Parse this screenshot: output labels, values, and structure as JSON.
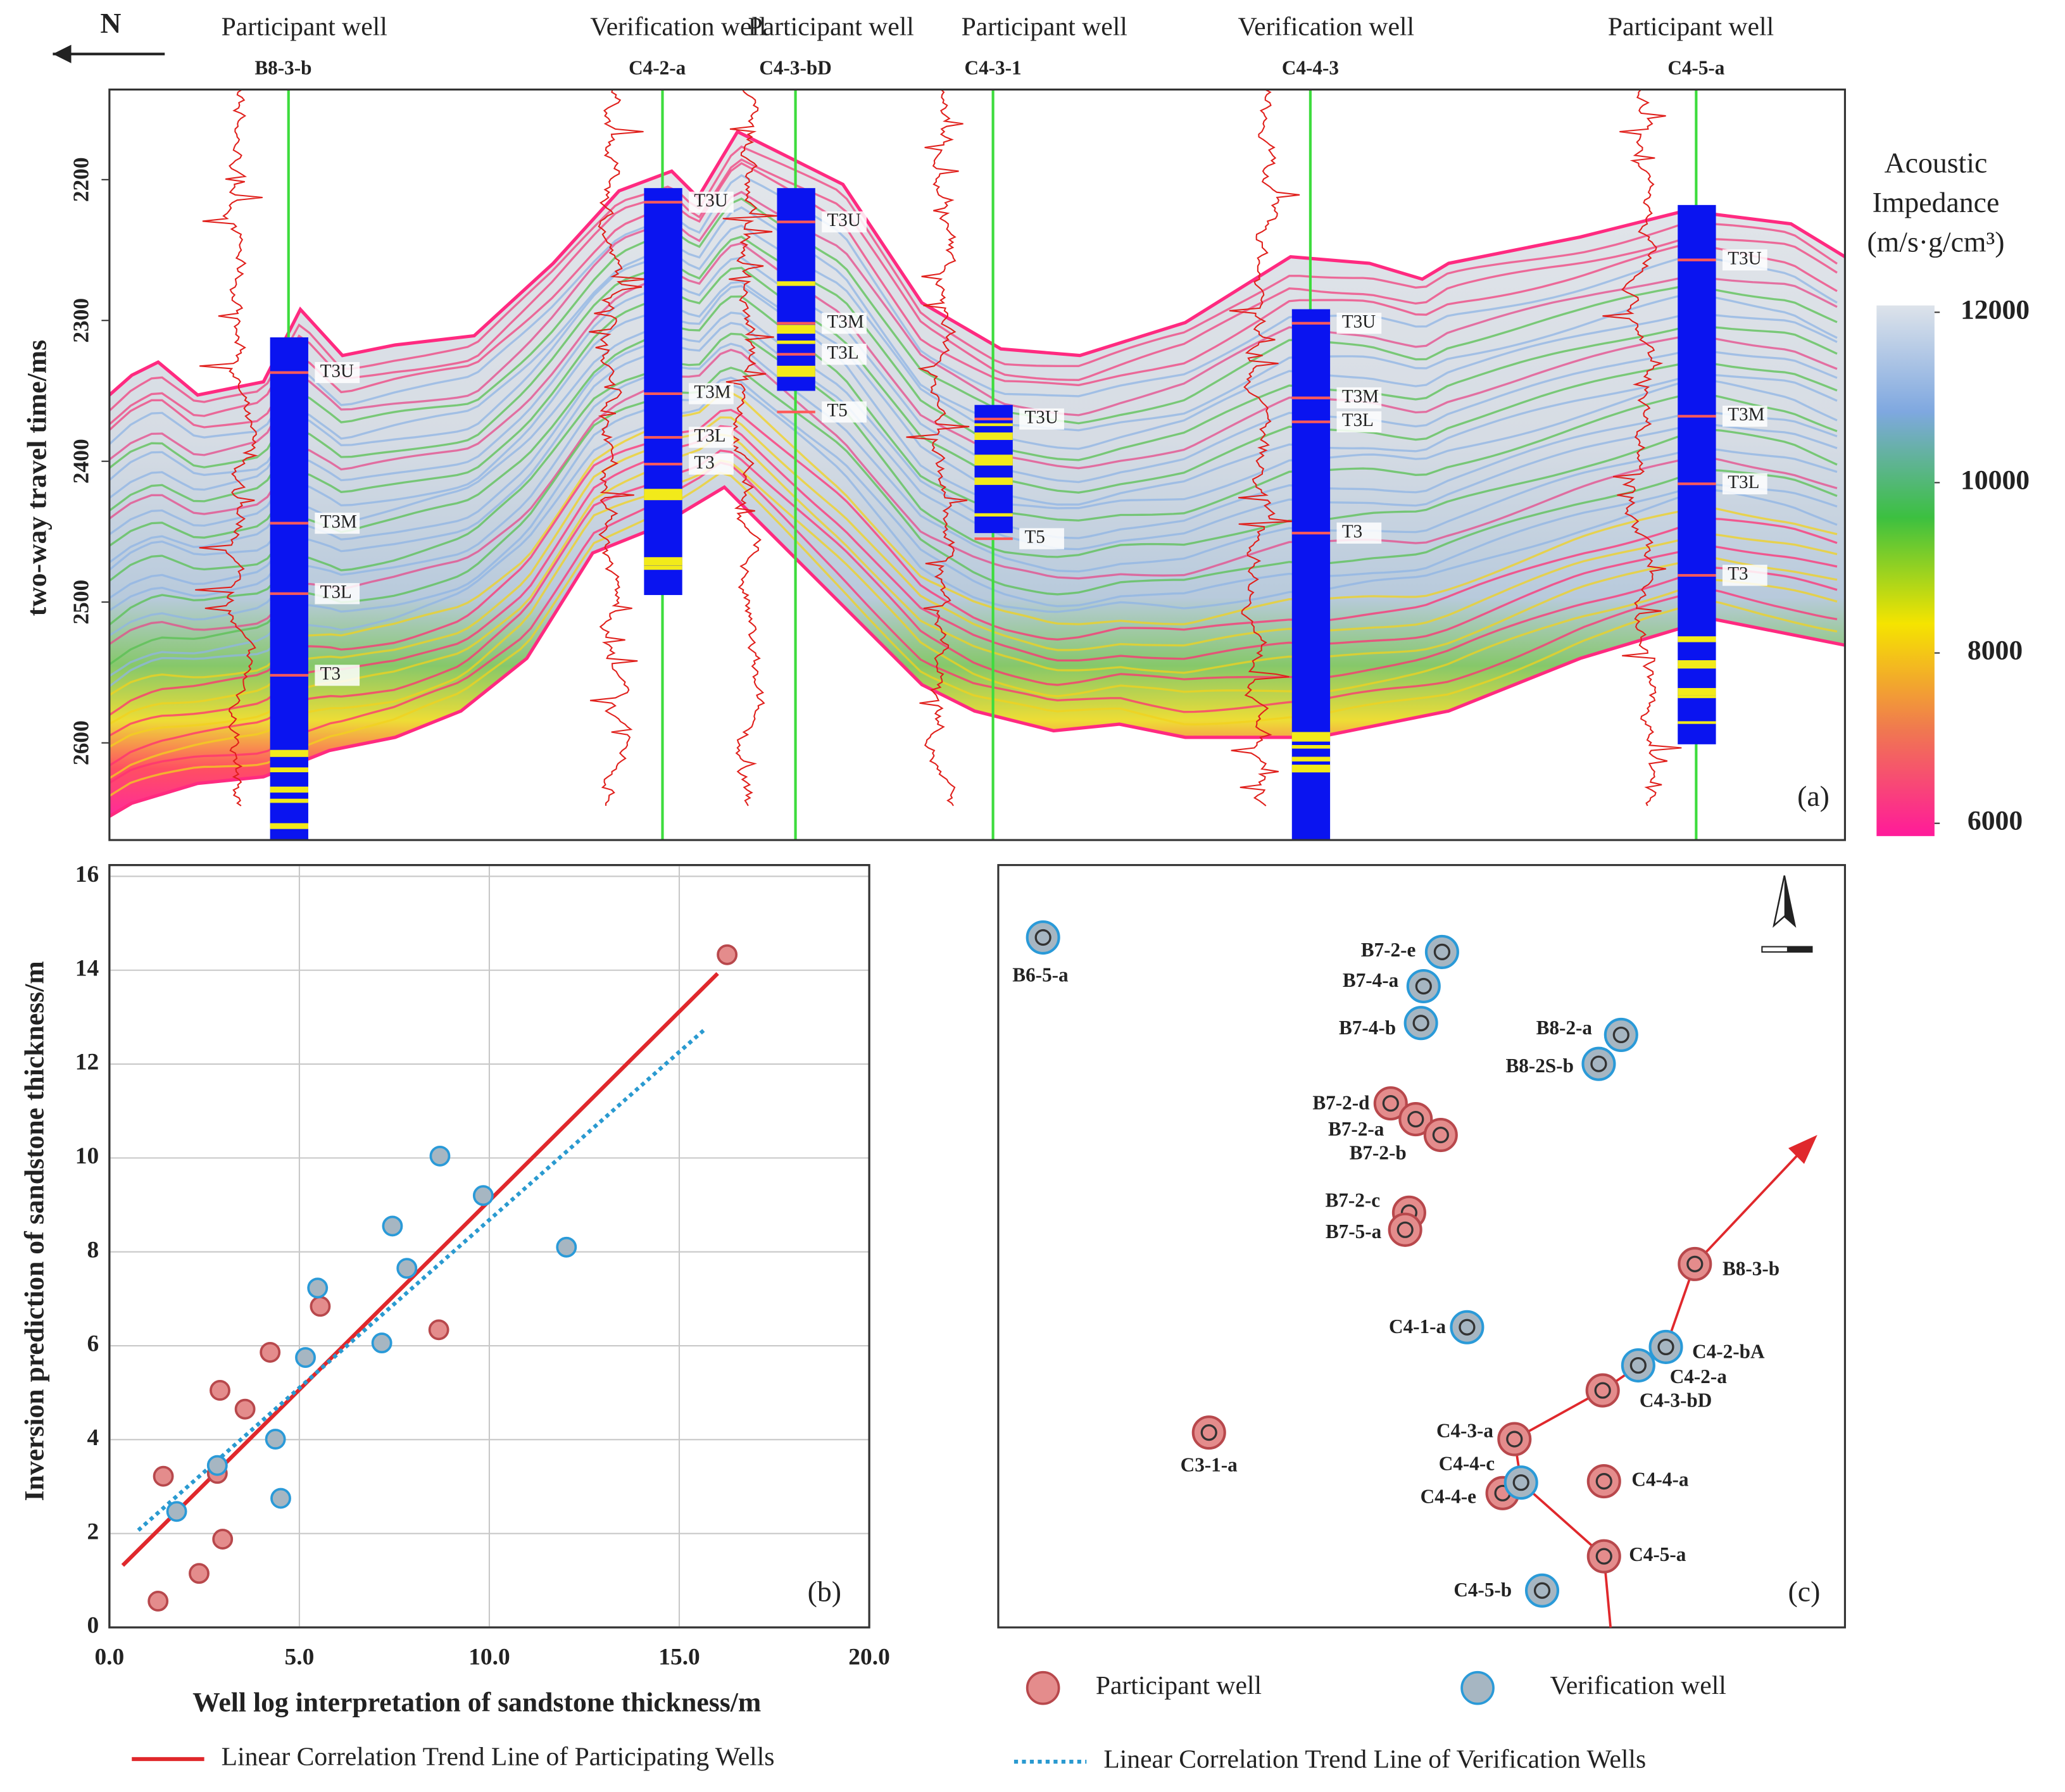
{
  "chart_data": [
    {
      "type": "seismic",
      "direction": "N",
      "ylabel": "two-way travel time/ms",
      "ylim": [
        2136,
        2669
      ],
      "yticks": [
        2200,
        2300,
        2400,
        2500,
        2600
      ],
      "panel_label": "(a)",
      "wells": [
        {
          "role": "Participant well",
          "name": "B8-3-b",
          "column": [
            2312,
            2669
          ],
          "horizons": [
            {
              "label": "T3U",
              "time": 2337
            },
            {
              "label": "T3M",
              "time": 2444
            },
            {
              "label": "T3L",
              "time": 2494
            },
            {
              "label": "T3",
              "time": 2552
            }
          ]
        },
        {
          "role": "Verification well",
          "name": "C4-2-a",
          "column": [
            2206,
            2495
          ],
          "horizons": [
            {
              "label": "T3U",
              "time": 2216
            },
            {
              "label": "T3M",
              "time": 2352
            },
            {
              "label": "T3L",
              "time": 2383
            },
            {
              "label": "T3",
              "time": 2402
            }
          ]
        },
        {
          "role": "Participant well",
          "name": "C4-3-bD",
          "column": [
            2206,
            2350
          ],
          "horizons": [
            {
              "label": "T3U",
              "time": 2230
            },
            {
              "label": "T3M",
              "time": 2302
            },
            {
              "label": "T3L",
              "time": 2324
            },
            {
              "label": "T5",
              "time": 2365
            }
          ]
        },
        {
          "role": "Participant well",
          "name": "C4-3-1",
          "column": [
            2360,
            2451
          ],
          "horizons": [
            {
              "label": "T3U",
              "time": 2370
            },
            {
              "label": "T5",
              "time": 2455
            }
          ]
        },
        {
          "role": "Verification well",
          "name": "C4-4-3",
          "column": [
            2292,
            2669
          ],
          "horizons": [
            {
              "label": "T3U",
              "time": 2302
            },
            {
              "label": "T3M",
              "time": 2355
            },
            {
              "label": "T3L",
              "time": 2372
            },
            {
              "label": "T3",
              "time": 2451
            }
          ]
        },
        {
          "role": "Participant well",
          "name": "C4-5-a",
          "column": [
            2218,
            2601
          ],
          "horizons": [
            {
              "label": "T3U",
              "time": 2257
            },
            {
              "label": "T3M",
              "time": 2368
            },
            {
              "label": "T3L",
              "time": 2416
            },
            {
              "label": "T3",
              "time": 2481
            }
          ]
        }
      ],
      "colorbar": {
        "title": [
          "Acoustic",
          "Impedance",
          "(m/s·g/cm³)"
        ],
        "lim": [
          5850,
          12080
        ],
        "ticks": [
          12000,
          10000,
          8000,
          6000
        ],
        "colors": [
          "#ff1a9a",
          "#f07850",
          "#f5e400",
          "#3cc040",
          "#7fa8e0",
          "#dde3ea"
        ]
      }
    },
    {
      "type": "scatter",
      "xlabel": "Well log interpretation of sandstone thickness/m",
      "ylabel": "Inversion prediction of sandstone thickness/m",
      "panel_label": "(b)",
      "xlim": [
        0,
        20
      ],
      "ylim": [
        0,
        16.24
      ],
      "xticks": [
        {
          "value": 0,
          "label": "0.0"
        },
        {
          "value": 5,
          "label": "5.0"
        },
        {
          "value": 10,
          "label": "10.0"
        },
        {
          "value": 15,
          "label": "15.0"
        },
        {
          "value": 20,
          "label": "20.0"
        }
      ],
      "yticks": [
        0,
        2,
        4,
        6,
        8,
        10,
        12,
        14,
        16
      ],
      "grid": true,
      "series": [
        {
          "name": "Participant well",
          "color": "#e48c8c",
          "edgecolor": "#b8484c",
          "x": [
            16.26,
            5.55,
            4.23,
            8.67,
            2.91,
            3.57,
            2.84,
            1.42,
            2.98,
            2.36,
            1.28
          ],
          "values": [
            14.33,
            6.84,
            5.86,
            6.34,
            5.05,
            4.65,
            3.28,
            3.22,
            1.88,
            1.15,
            0.56
          ]
        },
        {
          "name": "Verification well",
          "color": "#a6b6c2",
          "edgecolor": "#2a9ad8",
          "x": [
            8.7,
            9.84,
            7.45,
            12.03,
            5.48,
            7.83,
            7.17,
            5.16,
            4.37,
            4.51,
            1.77,
            2.84
          ],
          "values": [
            10.04,
            9.2,
            8.55,
            8.1,
            7.23,
            7.65,
            6.06,
            5.75,
            4.01,
            2.75,
            2.47,
            3.45
          ]
        }
      ],
      "lines": [
        {
          "name": "Linear Correlation Trend Line of Participating Wells",
          "color": "#e0282c",
          "dash": false,
          "x": [
            0.35,
            16.01
          ],
          "values": [
            1.32,
            13.93
          ]
        },
        {
          "name": "Linear Correlation Trend Line of Verification Wells",
          "color": "#2a9ad0",
          "dash": true,
          "x": [
            0.76,
            15.7
          ],
          "values": [
            2.07,
            12.76
          ]
        }
      ]
    },
    {
      "type": "map",
      "panel_label": "(c)",
      "series": [
        {
          "wells": [
            "B7-2-d",
            "B7-2-a",
            "B7-2-b",
            "B7-2-c",
            "B7-5-a",
            "B8-3-b",
            "C4-3-bD",
            "C4-3-a",
            "C3-1-a",
            "C4-4-a",
            "C4-4-e",
            "C4-5-a"
          ]
        },
        {
          "wells": [
            "B6-5-a",
            "B7-2-e",
            "B7-4-a",
            "B7-4-b",
            "B8-2-a",
            "B8-2S-b",
            "C4-1-a",
            "C4-2-bA",
            "C4-2-a",
            "C4-4-c",
            "C4-5-b"
          ]
        }
      ]
    }
  ]
}
